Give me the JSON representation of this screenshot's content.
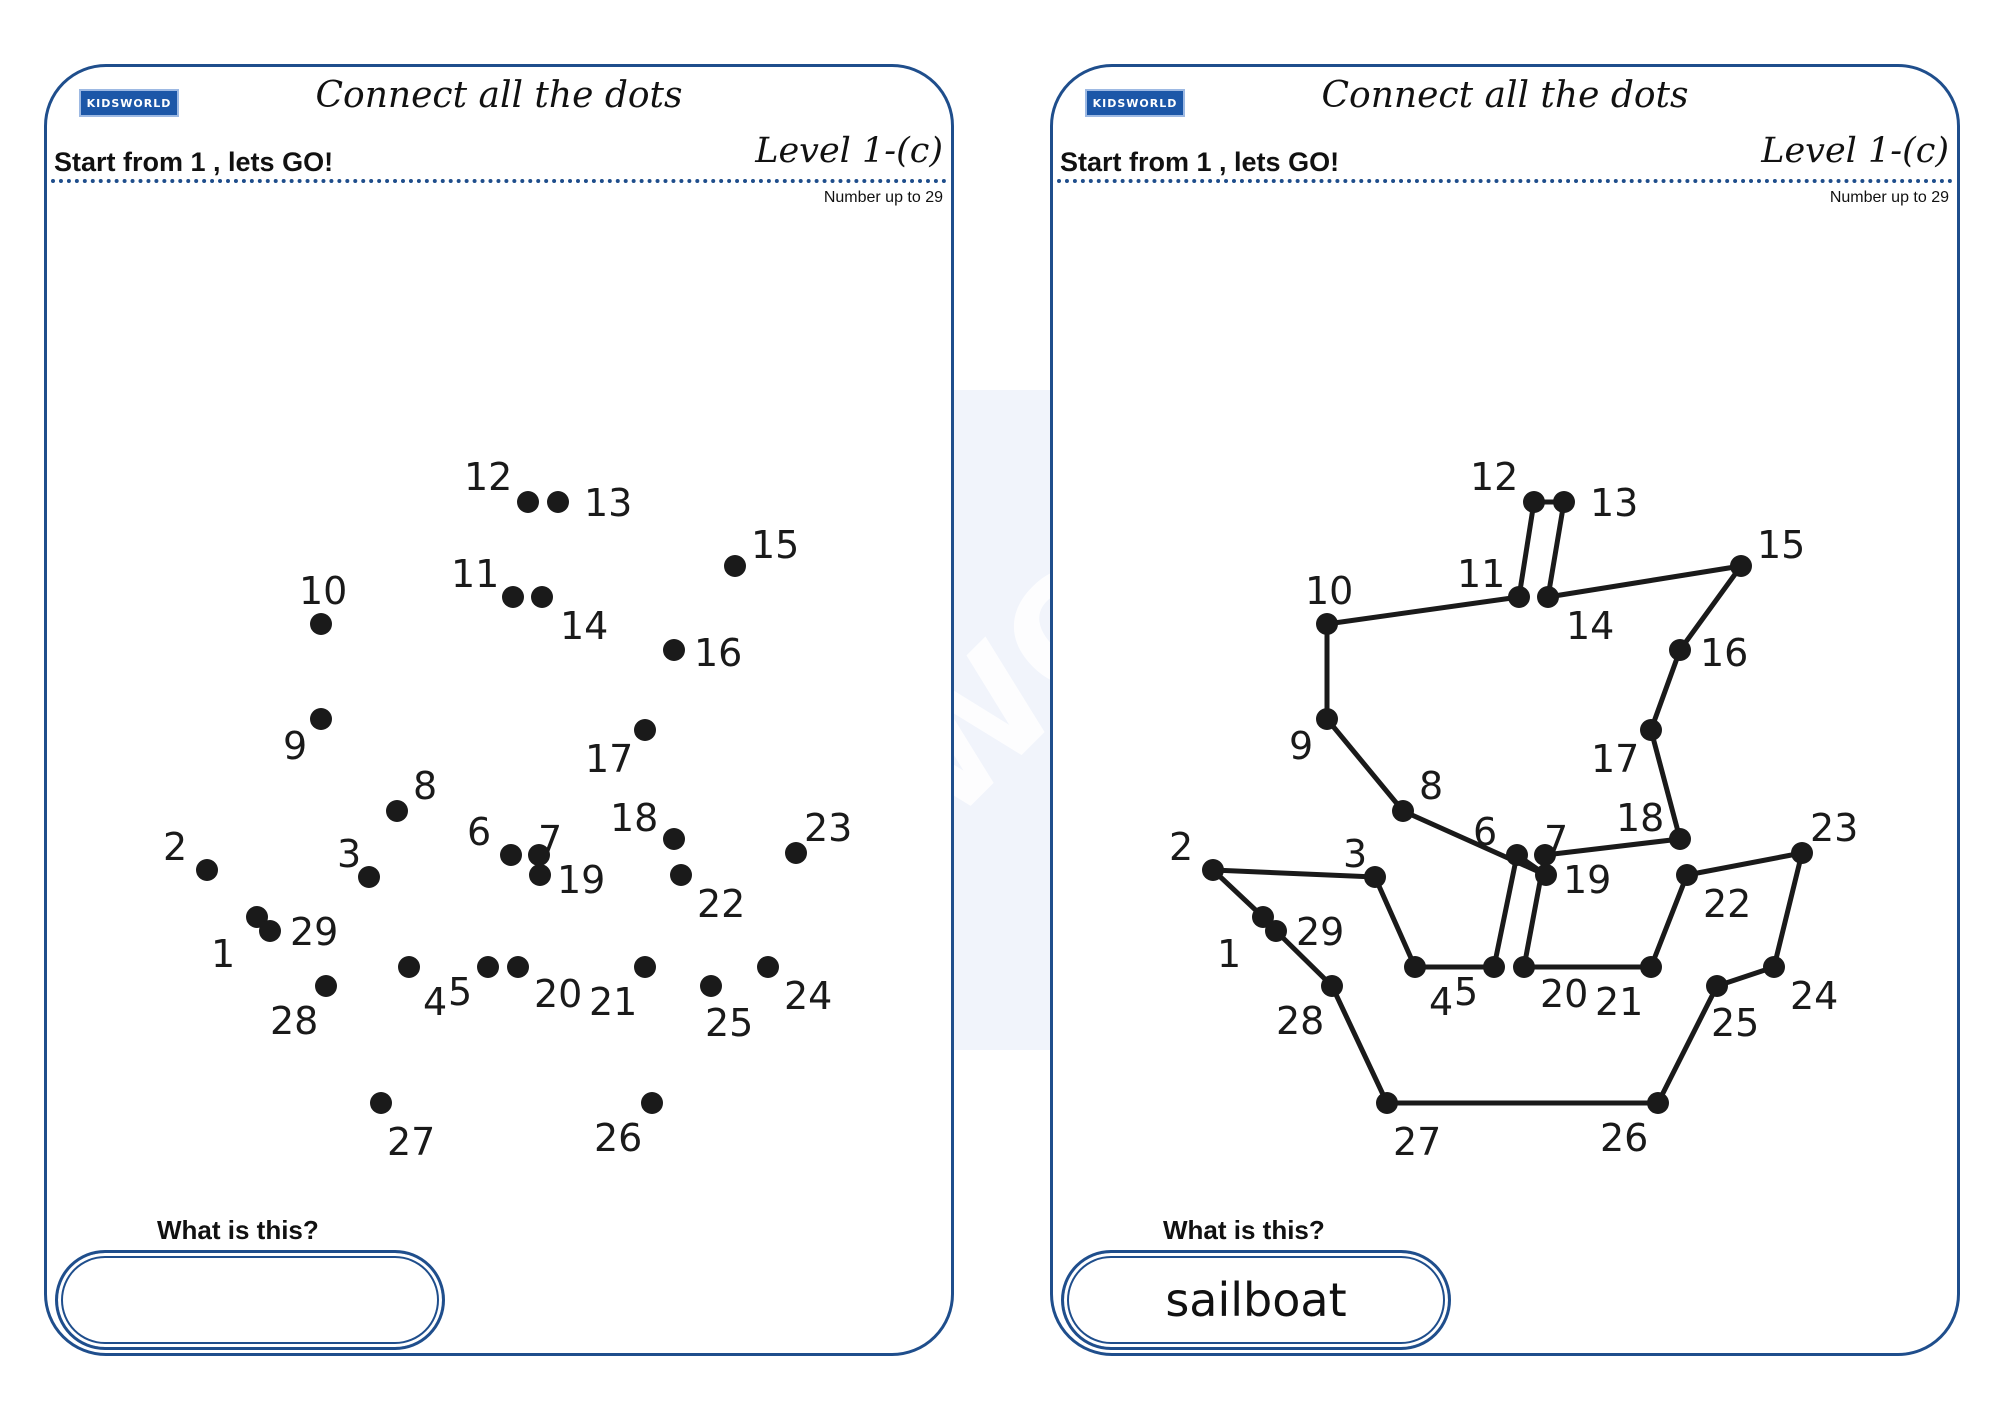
{
  "sheets": [
    {
      "logo": "KIDSWORLD",
      "title": "Connect all the dots",
      "start_text": "Start from 1 , lets GO!",
      "level": "Level 1-(c)",
      "range_text": "Number up to 29",
      "question": "What is this?",
      "answer": "",
      "connected": false
    },
    {
      "logo": "KIDSWORLD",
      "title": "Connect all the dots",
      "start_text": "Start from 1 , lets GO!",
      "level": "Level 1-(c)",
      "range_text": "Number up to 29",
      "question": "What is this?",
      "answer": "sailboat",
      "connected": true
    }
  ],
  "dots": [
    "1",
    "2",
    "3",
    "4",
    "5",
    "6",
    "7",
    "8",
    "9",
    "10",
    "11",
    "12",
    "13",
    "14",
    "15",
    "16",
    "17",
    "18",
    "19",
    "20",
    "21",
    "22",
    "23",
    "24",
    "25",
    "26",
    "27",
    "28",
    "29"
  ],
  "watermark": "KIDSWORLD",
  "colors": {
    "frame": "#1f4e8c",
    "logo_bg": "#1c57a8",
    "dot": "#1a1a1a",
    "watermark": "#e8eef8"
  }
}
